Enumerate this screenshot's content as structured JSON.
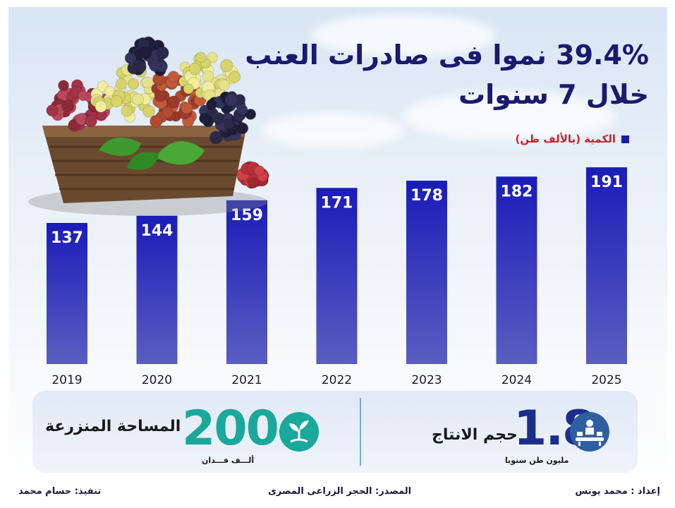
{
  "title": {
    "line1": "39.4% نموا فى صادرات العنب",
    "line2": "خلال 7 سنوات"
  },
  "legend": {
    "label": "الكمية (بالألف طن)"
  },
  "chart_data": {
    "type": "bar",
    "categories": [
      "2019",
      "2020",
      "2021",
      "2022",
      "2023",
      "2024",
      "2025"
    ],
    "values": [
      137,
      144,
      159,
      171,
      178,
      182,
      191
    ],
    "series": [
      {
        "name": "الكمية (بالألف طن)",
        "values": [
          137,
          144,
          159,
          171,
          178,
          182,
          191
        ]
      }
    ],
    "title": "39.4% نموا فى صادرات العنب خلال 7 سنوات",
    "xlabel": "",
    "ylabel": "",
    "ylim": [
      0,
      200
    ],
    "grid": false,
    "legend_position": "top-right",
    "colors": {
      "bar_top": "#1a1cb8",
      "bar_bottom": "#5a5ec0"
    }
  },
  "stats": {
    "production": {
      "value": "1.8",
      "label": "حجم الانتاج",
      "unit": "مليون طن سنويا",
      "icon": "factory-conveyor-icon",
      "color": "#1b2f8a",
      "icon_bg": "#2f5fa0"
    },
    "area": {
      "value": "200",
      "label": "المساحة المنزرعة",
      "unit": "ألـــف فـــدان",
      "icon": "sprout-icon",
      "color": "#1aa89a",
      "icon_bg": "#1aa89a"
    }
  },
  "footer": {
    "prepared_by": "إعداد : محمد يونس",
    "source": "المصدر: الحجر الزراعى المصرى",
    "executed_by": "تنفيذ: حسام محمد"
  }
}
